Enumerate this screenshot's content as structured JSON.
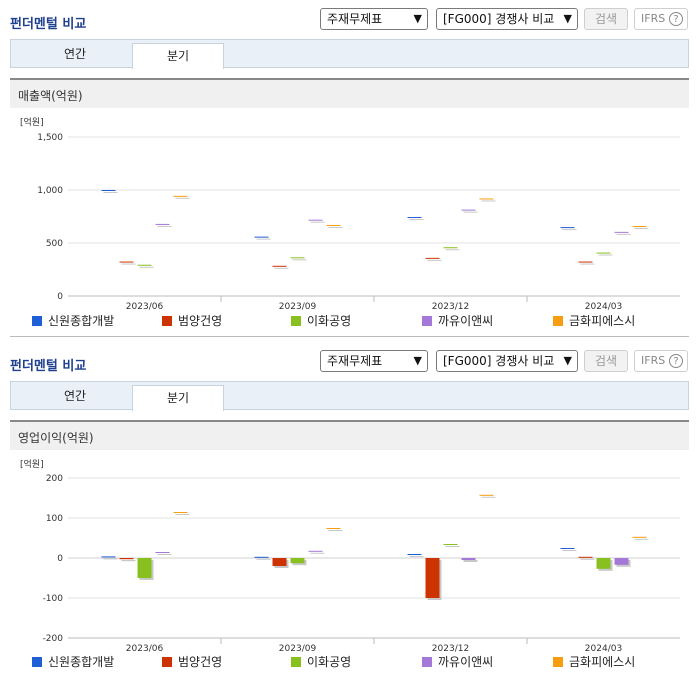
{
  "panels": [
    {
      "title": "펀더멘털 비교",
      "select1": "주재무제표",
      "select2": "[FG000] 경쟁사 비교",
      "search_label": "검색",
      "ifrs_label": "IFRS",
      "help_glyph": "?",
      "tabs": [
        "연간",
        "분기"
      ],
      "active_tab": "분기",
      "section_title": "매출액(억원)"
    },
    {
      "title": "펀더멘털 비교",
      "select1": "주재무제표",
      "select2": "[FG000] 경쟁사 비교",
      "search_label": "검색",
      "ifrs_label": "IFRS",
      "help_glyph": "?",
      "tabs": [
        "연간",
        "분기"
      ],
      "active_tab": "분기",
      "section_title": "영업이익(억원)"
    }
  ],
  "chart_data": [
    {
      "type": "bar",
      "title": "매출액(억원)",
      "unit_label": "[억원]",
      "categories": [
        "2023/06",
        "2023/09",
        "2023/12",
        "2024/03"
      ],
      "ylim": [
        0,
        1500
      ],
      "yticks": [
        0,
        500,
        1000,
        1500
      ],
      "ytick_labels": [
        "0",
        "500",
        "1,000",
        "1,500"
      ],
      "grid": true,
      "legend_position": "bottom",
      "series": [
        {
          "name": "신원종합개발",
          "color": "#1f5fd6",
          "values": [
            1000,
            560,
            745,
            650
          ]
        },
        {
          "name": "범양건영",
          "color": "#cc3300",
          "values": [
            325,
            285,
            360,
            325
          ]
        },
        {
          "name": "이화공영",
          "color": "#88c020",
          "values": [
            295,
            365,
            460,
            410
          ]
        },
        {
          "name": "까유이앤씨",
          "color": "#a478d8",
          "values": [
            680,
            720,
            815,
            605
          ]
        },
        {
          "name": "금화피에스시",
          "color": "#f89c10",
          "values": [
            945,
            670,
            920,
            660
          ]
        }
      ]
    },
    {
      "type": "bar",
      "title": "영업이익(억원)",
      "unit_label": "[억원]",
      "categories": [
        "2023/06",
        "2023/09",
        "2023/12",
        "2024/03"
      ],
      "ylim": [
        -200,
        200
      ],
      "yticks": [
        -200,
        -100,
        0,
        100,
        200
      ],
      "ytick_labels": [
        "-200",
        "-100",
        "0",
        "100",
        "200"
      ],
      "grid": true,
      "legend_position": "bottom",
      "series": [
        {
          "name": "신원종합개발",
          "color": "#1f5fd6",
          "values": [
            4,
            3,
            10,
            25
          ]
        },
        {
          "name": "범양건영",
          "color": "#cc3300",
          "values": [
            -3,
            -20,
            -100,
            3
          ]
        },
        {
          "name": "이화공영",
          "color": "#88c020",
          "values": [
            -50,
            -13,
            35,
            -27
          ]
        },
        {
          "name": "까유이앤씨",
          "color": "#a478d8",
          "values": [
            15,
            18,
            -5,
            -17
          ]
        },
        {
          "name": "금화피에스시",
          "color": "#f89c10",
          "values": [
            115,
            75,
            158,
            53
          ]
        }
      ]
    }
  ]
}
